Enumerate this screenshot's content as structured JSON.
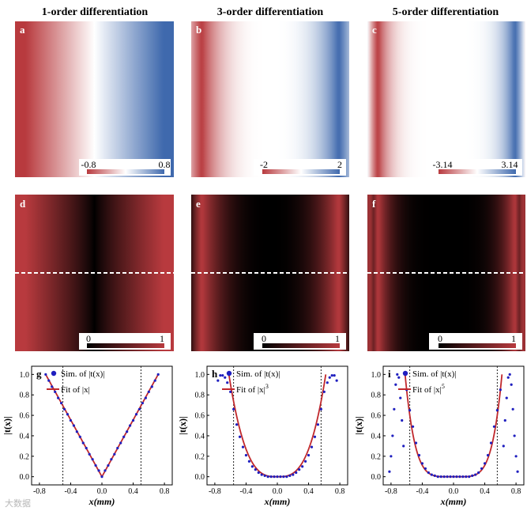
{
  "columns": [
    {
      "title": "1-order differentiation",
      "order": 1,
      "top_label": "a",
      "mid_label": "d",
      "bot_label": "g",
      "phase_colorbar": {
        "min": "-0.8",
        "max": "0.8"
      },
      "amp_colorbar": {
        "min": "0",
        "max": "1"
      },
      "legend": {
        "sim": "Sim. of |t(x)|",
        "fit": "Fit of |x|",
        "fit_exp": ""
      }
    },
    {
      "title": "3-order differentiation",
      "order": 3,
      "top_label": "b",
      "mid_label": "e",
      "bot_label": "h",
      "phase_colorbar": {
        "min": "-2",
        "max": "2"
      },
      "amp_colorbar": {
        "min": "0",
        "max": "1"
      },
      "legend": {
        "sim": "Sim. of |t(x)|",
        "fit": "Fit of |x|",
        "fit_exp": "3"
      }
    },
    {
      "title": "5-order differentiation",
      "order": 5,
      "top_label": "c",
      "mid_label": "f",
      "bot_label": "i",
      "phase_colorbar": {
        "min": "-3.14",
        "max": "3.14"
      },
      "amp_colorbar": {
        "min": "0",
        "max": "1"
      },
      "legend": {
        "sim": "Sim. of |t(x)|",
        "fit": "Fit of |x|",
        "fit_exp": "5"
      }
    }
  ],
  "axis": {
    "xlabel": "x(mm)",
    "ylabel": "|t(x)|",
    "xticks": [
      "-0.8",
      "-0.4",
      "0.0",
      "0.4",
      "0.8"
    ],
    "yticks": [
      "0.0",
      "0.2",
      "0.4",
      "0.6",
      "0.8",
      "1.0"
    ]
  },
  "watermark": "大数据",
  "colors": {
    "red": "#b83a3e",
    "blue": "#3f69ad",
    "dark": "#000000",
    "sim_marker": "#1f1fbf",
    "fit_line": "#c0282c"
  },
  "chart_data": [
    {
      "type": "scatter",
      "panel": "g",
      "xlabel": "x(mm)",
      "ylabel": "|t(x)|",
      "xlim": [
        -0.9,
        0.9
      ],
      "ylim": [
        -0.08,
        1.08
      ],
      "fit_exponent": 1,
      "series": [
        {
          "name": "Sim. of |t(x)|",
          "x": [
            -0.72,
            -0.68,
            -0.64,
            -0.6,
            -0.56,
            -0.52,
            -0.48,
            -0.44,
            -0.4,
            -0.36,
            -0.32,
            -0.28,
            -0.24,
            -0.2,
            -0.16,
            -0.12,
            -0.08,
            -0.04,
            0.0,
            0.04,
            0.08,
            0.12,
            0.16,
            0.2,
            0.24,
            0.28,
            0.32,
            0.36,
            0.4,
            0.44,
            0.48,
            0.52,
            0.56,
            0.6,
            0.64,
            0.68,
            0.72
          ],
          "y": [
            1.0,
            0.94,
            0.88,
            0.83,
            0.77,
            0.72,
            0.66,
            0.61,
            0.55,
            0.5,
            0.44,
            0.39,
            0.33,
            0.28,
            0.22,
            0.17,
            0.11,
            0.06,
            0.0,
            0.06,
            0.11,
            0.17,
            0.22,
            0.28,
            0.33,
            0.39,
            0.44,
            0.5,
            0.55,
            0.61,
            0.66,
            0.72,
            0.77,
            0.83,
            0.88,
            0.94,
            1.0
          ]
        },
        {
          "name": "Fit of |x|",
          "x": [
            -0.72,
            0.0,
            0.72
          ],
          "y": [
            1.0,
            0.0,
            1.0
          ]
        }
      ],
      "vlines": [
        -0.5,
        0.5
      ]
    },
    {
      "type": "scatter",
      "panel": "h",
      "xlabel": "x(mm)",
      "ylabel": "|t(x)|",
      "xlim": [
        -0.9,
        0.9
      ],
      "ylim": [
        -0.08,
        1.08
      ],
      "fit_exponent": 3,
      "series": [
        {
          "name": "Sim. of |t(x)|",
          "x": [
            -0.76,
            -0.73,
            -0.7,
            -0.67,
            -0.64,
            -0.6,
            -0.56,
            -0.52,
            -0.48,
            -0.44,
            -0.4,
            -0.36,
            -0.32,
            -0.28,
            -0.24,
            -0.2,
            -0.16,
            -0.12,
            -0.08,
            -0.04,
            0.0,
            0.04,
            0.08,
            0.12,
            0.16,
            0.2,
            0.24,
            0.28,
            0.32,
            0.36,
            0.4,
            0.44,
            0.48,
            0.52,
            0.56,
            0.6,
            0.64,
            0.67,
            0.7,
            0.73,
            0.76
          ],
          "y": [
            0.94,
            0.99,
            0.99,
            0.97,
            0.92,
            0.83,
            0.66,
            0.51,
            0.39,
            0.29,
            0.21,
            0.15,
            0.1,
            0.07,
            0.04,
            0.02,
            0.01,
            0.0,
            0.0,
            0.0,
            0.0,
            0.0,
            0.0,
            0.0,
            0.01,
            0.02,
            0.04,
            0.07,
            0.1,
            0.15,
            0.21,
            0.29,
            0.39,
            0.51,
            0.66,
            0.83,
            0.92,
            0.97,
            0.99,
            0.99,
            0.94
          ]
        },
        {
          "name": "Fit of |x|^3",
          "x": [
            -0.62,
            0.0,
            0.62
          ],
          "y": [
            1.0,
            0.0,
            1.0
          ]
        }
      ],
      "vlines": [
        -0.56,
        0.56
      ]
    },
    {
      "type": "scatter",
      "panel": "i",
      "xlabel": "x(mm)",
      "ylabel": "|t(x)|",
      "xlim": [
        -0.9,
        0.9
      ],
      "ylim": [
        -0.08,
        1.08
      ],
      "fit_exponent": 5,
      "series": [
        {
          "name": "Sim. of |t(x)|",
          "x": [
            -0.82,
            -0.8,
            -0.78,
            -0.76,
            -0.74,
            -0.72,
            -0.7,
            -0.68,
            -0.66,
            -0.64,
            -0.6,
            -0.56,
            -0.52,
            -0.48,
            -0.44,
            -0.4,
            -0.36,
            -0.32,
            -0.28,
            -0.24,
            -0.2,
            -0.16,
            -0.12,
            -0.08,
            -0.04,
            0.0,
            0.04,
            0.08,
            0.12,
            0.16,
            0.2,
            0.24,
            0.28,
            0.32,
            0.36,
            0.4,
            0.44,
            0.48,
            0.52,
            0.56,
            0.6,
            0.64,
            0.66,
            0.68,
            0.7,
            0.72,
            0.74,
            0.76,
            0.78,
            0.8,
            0.82
          ],
          "y": [
            0.05,
            0.2,
            0.4,
            0.66,
            0.9,
            1.0,
            0.97,
            0.77,
            0.55,
            0.3,
            0.85,
            0.65,
            0.49,
            0.33,
            0.21,
            0.13,
            0.08,
            0.04,
            0.02,
            0.01,
            0.0,
            0.0,
            0.0,
            0.0,
            0.0,
            0.0,
            0.0,
            0.0,
            0.0,
            0.0,
            0.0,
            0.01,
            0.02,
            0.04,
            0.08,
            0.13,
            0.21,
            0.33,
            0.49,
            0.65,
            0.85,
            0.3,
            0.55,
            0.77,
            0.97,
            1.0,
            0.9,
            0.66,
            0.4,
            0.2,
            0.05
          ]
        },
        {
          "name": "Fit of |x|^5",
          "x": [
            -0.62,
            0.0,
            0.62
          ],
          "y": [
            1.0,
            0.0,
            1.0
          ]
        }
      ],
      "vlines": [
        -0.56,
        0.56
      ]
    }
  ]
}
